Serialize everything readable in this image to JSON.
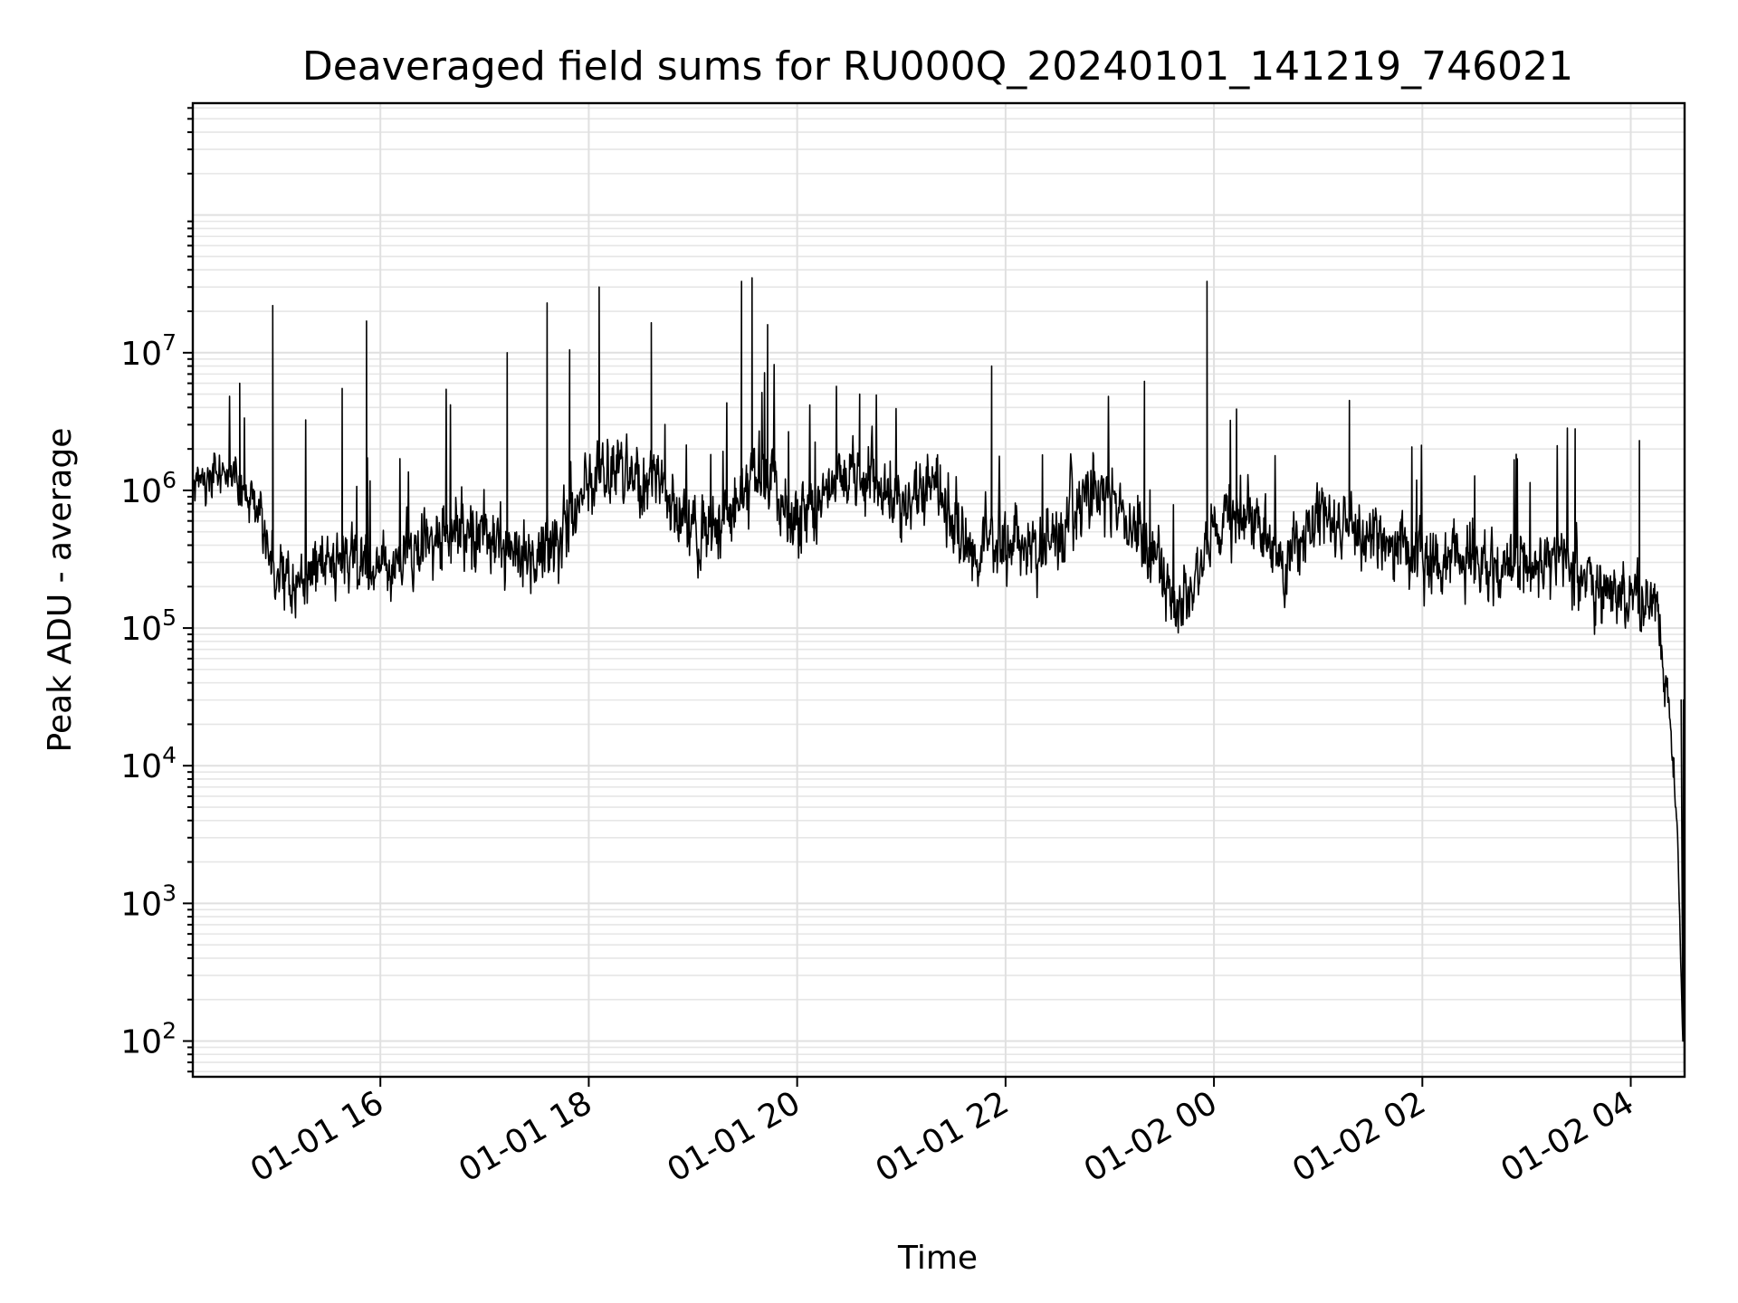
{
  "chart_data": {
    "type": "line",
    "title": "Deaveraged field sums for RU000Q_20240101_141219_746021",
    "xlabel": "Time",
    "ylabel": "Peak ADU - average",
    "yscale": "log",
    "ylim": [
      55,
      650000000
    ],
    "xlim": [
      "2024-01-01 14:12",
      "2024-01-02 04:31"
    ],
    "grid": true,
    "line_color": "#000000",
    "x_ticks": [
      "01-01 16",
      "01-01 18",
      "01-01 20",
      "01-01 22",
      "01-02 00",
      "01-02 02",
      "01-02 04"
    ],
    "x_tick_times": [
      "2024-01-01 16:00",
      "2024-01-01 18:00",
      "2024-01-01 20:00",
      "2024-01-01 22:00",
      "2024-01-02 00:00",
      "2024-01-02 02:00",
      "2024-01-02 04:00"
    ],
    "y_ticks": [
      {
        "base": "10",
        "exp": "2",
        "value": 100
      },
      {
        "base": "10",
        "exp": "3",
        "value": 1000
      },
      {
        "base": "10",
        "exp": "4",
        "value": 10000
      },
      {
        "base": "10",
        "exp": "5",
        "value": 100000
      },
      {
        "base": "10",
        "exp": "6",
        "value": 1000000
      },
      {
        "base": "10",
        "exp": "7",
        "value": 10000000
      }
    ],
    "series": [
      {
        "x": [
          "2024-01-01 14:12",
          "2024-01-01 14:30",
          "2024-01-01 14:45",
          "2024-01-01 15:00",
          "2024-01-01 15:15",
          "2024-01-01 15:30",
          "2024-01-01 15:45",
          "2024-01-01 16:00",
          "2024-01-01 16:20",
          "2024-01-01 16:40",
          "2024-01-01 17:00",
          "2024-01-01 17:20",
          "2024-01-01 17:40",
          "2024-01-01 18:00",
          "2024-01-01 18:20",
          "2024-01-01 18:40",
          "2024-01-01 19:00",
          "2024-01-01 19:20",
          "2024-01-01 19:40",
          "2024-01-01 20:00",
          "2024-01-01 20:20",
          "2024-01-01 20:40",
          "2024-01-01 21:00",
          "2024-01-01 21:20",
          "2024-01-01 21:40",
          "2024-01-01 22:00",
          "2024-01-01 22:20",
          "2024-01-01 22:40",
          "2024-01-01 23:00",
          "2024-01-01 23:20",
          "2024-01-01 23:40",
          "2024-01-02 00:00",
          "2024-01-02 00:20",
          "2024-01-02 00:40",
          "2024-01-02 01:00",
          "2024-01-02 01:20",
          "2024-01-02 01:40",
          "2024-01-02 02:00",
          "2024-01-02 02:20",
          "2024-01-02 02:40",
          "2024-01-02 03:00",
          "2024-01-02 03:20",
          "2024-01-02 03:40",
          "2024-01-02 04:00",
          "2024-01-02 04:15",
          "2024-01-02 04:22",
          "2024-01-02 04:27",
          "2024-01-02 04:30"
        ],
        "y": [
          1100000,
          1400000,
          900000,
          280000,
          220000,
          300000,
          330000,
          310000,
          350000,
          480000,
          520000,
          330000,
          380000,
          1200000,
          1300000,
          1100000,
          500000,
          620000,
          1400000,
          560000,
          1100000,
          1250000,
          900000,
          1000000,
          330000,
          420000,
          360000,
          750000,
          1000000,
          480000,
          120000,
          500000,
          700000,
          250000,
          650000,
          500000,
          420000,
          300000,
          350000,
          220000,
          310000,
          300000,
          200000,
          170000,
          150000,
          30000,
          3000,
          100
        ],
        "noise_amplitude_dex": [
          0.35,
          0.4,
          0.4,
          0.55,
          0.6,
          0.6,
          0.6,
          0.6,
          0.6,
          0.6,
          0.6,
          0.6,
          0.6,
          0.6,
          0.6,
          0.6,
          0.6,
          0.6,
          0.6,
          0.6,
          0.6,
          0.6,
          0.6,
          0.6,
          0.6,
          0.6,
          0.6,
          0.6,
          0.6,
          0.6,
          0.6,
          0.6,
          0.6,
          0.6,
          0.6,
          0.6,
          0.6,
          0.6,
          0.6,
          0.6,
          0.6,
          0.6,
          0.6,
          0.6,
          0.5,
          0.4,
          0.2,
          0.1
        ]
      }
    ],
    "spikes": [
      {
        "x": "2024-01-01 14:39",
        "y": 6000000
      },
      {
        "x": "2024-01-01 14:58",
        "y": 22000000
      },
      {
        "x": "2024-01-01 15:38",
        "y": 5500000
      },
      {
        "x": "2024-01-01 15:52",
        "y": 17000000
      },
      {
        "x": "2024-01-01 17:13",
        "y": 10000000
      },
      {
        "x": "2024-01-01 17:36",
        "y": 23000000
      },
      {
        "x": "2024-01-01 17:49",
        "y": 10500000
      },
      {
        "x": "2024-01-01 18:06",
        "y": 30000000
      },
      {
        "x": "2024-01-01 18:36",
        "y": 16500000
      },
      {
        "x": "2024-01-01 19:28",
        "y": 33000000
      },
      {
        "x": "2024-01-01 19:34",
        "y": 35000000
      },
      {
        "x": "2024-01-01 19:43",
        "y": 16000000
      },
      {
        "x": "2024-01-01 20:36",
        "y": 5000000
      },
      {
        "x": "2024-01-01 21:52",
        "y": 8000000
      },
      {
        "x": "2024-01-01 23:20",
        "y": 6200000
      },
      {
        "x": "2024-01-01 23:56",
        "y": 33000000
      },
      {
        "x": "2024-01-02 00:13",
        "y": 3900000
      },
      {
        "x": "2024-01-02 01:18",
        "y": 4500000
      },
      {
        "x": "2024-01-02 03:28",
        "y": 2800000
      },
      {
        "x": "2024-01-02 04:05",
        "y": 2300000
      }
    ]
  }
}
